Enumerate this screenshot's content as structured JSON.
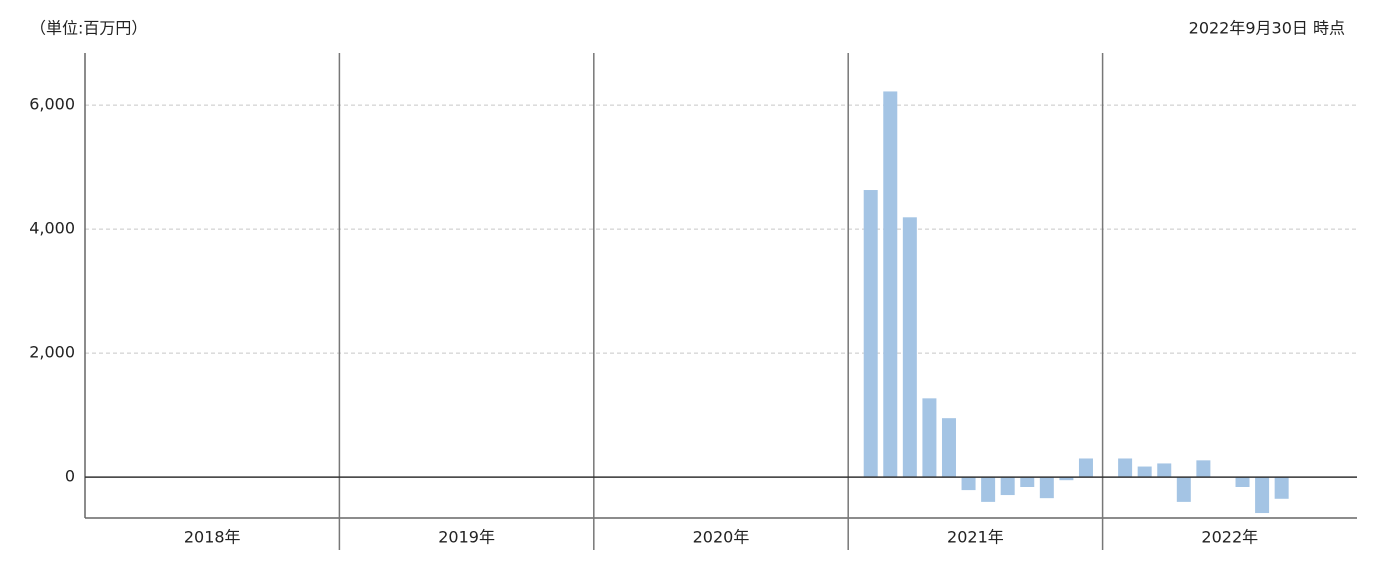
{
  "chart_data": {
    "type": "bar",
    "unit_note": "（単位:百万円）",
    "as_of": "2022年9月30日 時点",
    "color": "#a4c4e4",
    "ylim": [
      -660,
      6840
    ],
    "yticks": [
      0,
      {
        "value": 2000,
        "label": "2,000"
      },
      {
        "value": 4000,
        "label": "4,000"
      },
      {
        "value": 6000,
        "label": "6,000"
      }
    ],
    "grid": true,
    "groups": [
      {
        "label": "2018年",
        "values": [
          null,
          null,
          null,
          null,
          null,
          null,
          null,
          null,
          null,
          null,
          null,
          null
        ]
      },
      {
        "label": "2019年",
        "values": [
          null,
          null,
          null,
          null,
          null,
          null,
          null,
          null,
          null,
          null,
          null,
          null
        ]
      },
      {
        "label": "2020年",
        "values": [
          null,
          null,
          null,
          null,
          null,
          null,
          null,
          null,
          null,
          null,
          null,
          null
        ]
      },
      {
        "label": "2021年",
        "values": [
          4630,
          6220,
          4190,
          1270,
          950,
          -210,
          -400,
          -290,
          -160,
          -340,
          -50,
          300
        ]
      },
      {
        "label": "2022年",
        "values": [
          300,
          170,
          220,
          -400,
          270,
          0,
          -160,
          -580,
          -350,
          null,
          null,
          null
        ]
      }
    ]
  }
}
